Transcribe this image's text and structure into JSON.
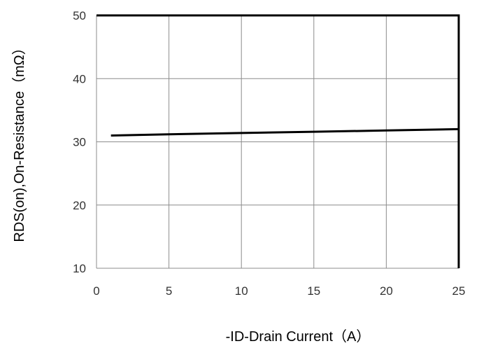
{
  "chart_data": {
    "type": "line",
    "xlabel": "-ID-Drain Current（A）",
    "ylabel": "RDS(on),On-Resistance（mΩ）",
    "xlim": [
      0,
      25
    ],
    "ylim": [
      10,
      50
    ],
    "x_ticks": [
      0,
      5,
      10,
      15,
      20,
      25
    ],
    "y_ticks": [
      10,
      20,
      30,
      40,
      50
    ],
    "grid": true,
    "series": [
      {
        "x": [
          1,
          5,
          10,
          15,
          20,
          25
        ],
        "y": [
          31.0,
          31.2,
          31.4,
          31.6,
          31.8,
          32.0
        ],
        "color": "#000000"
      }
    ]
  }
}
